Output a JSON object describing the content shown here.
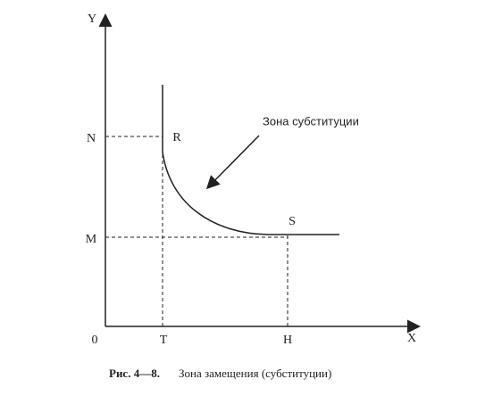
{
  "axes": {
    "y": "Y",
    "x": "X",
    "origin": "0"
  },
  "ticks": {
    "n": "N",
    "m": "M",
    "t": "T",
    "h": "H"
  },
  "points": {
    "r": "R",
    "s": "S"
  },
  "annotation": "Зона субституции",
  "caption": {
    "label": "Рис. 4—8.",
    "text": "Зона замещения (субституции)"
  }
}
